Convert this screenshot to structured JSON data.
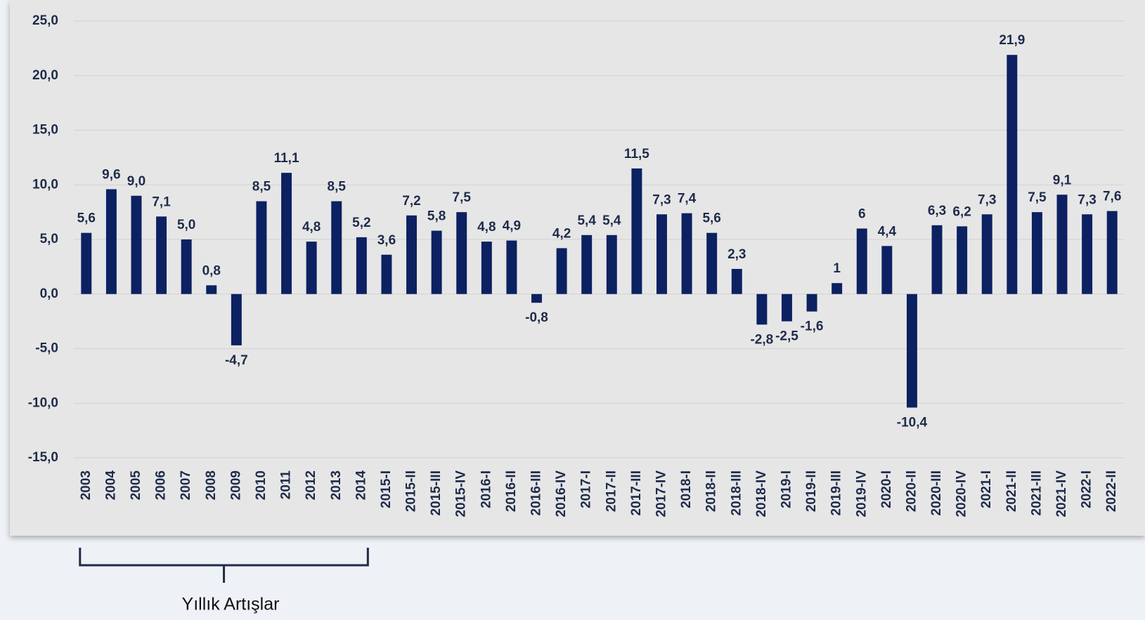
{
  "chart_data": {
    "type": "bar",
    "categories": [
      "2003",
      "2004",
      "2005",
      "2006",
      "2007",
      "2008",
      "2009",
      "2010",
      "2011",
      "2012",
      "2013",
      "2014",
      "2015-I",
      "2015-II",
      "2015-III",
      "2015-IV",
      "2016-I",
      "2016-II",
      "2016-III",
      "2016-IV",
      "2017-I",
      "2017-II",
      "2017-III",
      "2017-IV",
      "2018-I",
      "2018-II",
      "2018-III",
      "2018-IV",
      "2019-I",
      "2019-II",
      "2019-III",
      "2019-IV",
      "2020-I",
      "2020-II",
      "2020-III",
      "2020-IV",
      "2021-I",
      "2021-II",
      "2021-III",
      "2021-IV",
      "2022-I",
      "2022-II"
    ],
    "values": [
      5.6,
      9.6,
      9.0,
      7.1,
      5.0,
      0.8,
      -4.7,
      8.5,
      11.1,
      4.8,
      8.5,
      5.2,
      3.6,
      7.2,
      5.8,
      7.5,
      4.8,
      4.9,
      -0.8,
      4.2,
      5.4,
      5.4,
      11.5,
      7.3,
      7.4,
      5.6,
      2.3,
      -2.8,
      -2.5,
      -1.6,
      1,
      6,
      4.4,
      -10.4,
      6.3,
      6.2,
      7.3,
      21.9,
      7.5,
      9.1,
      7.3,
      7.6
    ],
    "value_labels": [
      "5,6",
      "9,6",
      "9,0",
      "7,1",
      "5,0",
      "0,8",
      "-4,7",
      "8,5",
      "11,1",
      "4,8",
      "8,5",
      "5,2",
      "3,6",
      "7,2",
      "5,8",
      "7,5",
      "4,8",
      "4,9",
      "-0,8",
      "4,2",
      "5,4",
      "5,4",
      "11,5",
      "7,3",
      "7,4",
      "5,6",
      "2,3",
      "-2,8",
      "-2,5",
      "-1,6",
      "1",
      "6",
      "4,4",
      "-10,4",
      "6,3",
      "6,2",
      "7,3",
      "21,9",
      "7,5",
      "9,1",
      "7,3",
      "7,6"
    ],
    "color": "#0c2161",
    "ylim": [
      -15,
      25
    ],
    "yticks": [
      {
        "value": -15,
        "label": "-15,0"
      },
      {
        "value": -10,
        "label": "-10,0"
      },
      {
        "value": -5,
        "label": "-5,0"
      },
      {
        "value": 0,
        "label": "0,0"
      },
      {
        "value": 5,
        "label": "5,0"
      },
      {
        "value": 10,
        "label": "10,0"
      },
      {
        "value": 15,
        "label": "15,0"
      },
      {
        "value": 20,
        "label": "20,0"
      },
      {
        "value": 25,
        "label": "25,0"
      }
    ],
    "grid": true,
    "annotation": "Yıllık Artışlar"
  }
}
